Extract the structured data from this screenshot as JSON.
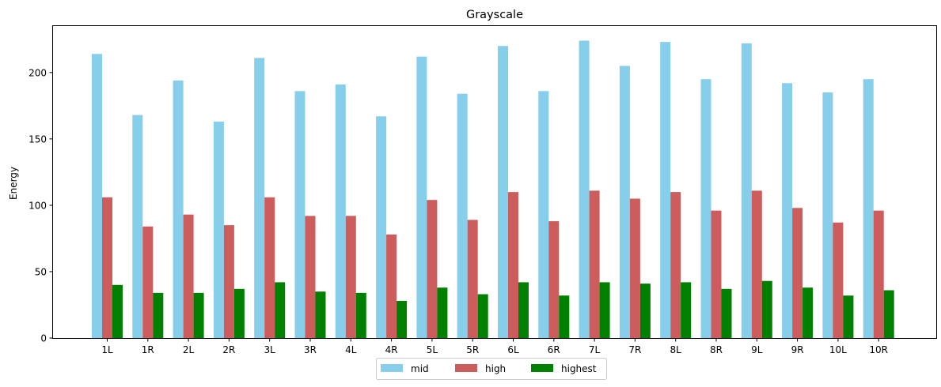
{
  "chart_data": {
    "type": "bar",
    "title": "Grayscale",
    "xlabel": "",
    "ylabel": "Energy",
    "ylim": [
      0,
      235
    ],
    "yticks": [
      0,
      50,
      100,
      150,
      200
    ],
    "grid": false,
    "legend_position": "bottom-center",
    "categories": [
      "1L",
      "1R",
      "2L",
      "2R",
      "3L",
      "3R",
      "4L",
      "4R",
      "5L",
      "5R",
      "6L",
      "6R",
      "7L",
      "7R",
      "8L",
      "8R",
      "9L",
      "9R",
      "10L",
      "10R"
    ],
    "series": [
      {
        "name": "mid",
        "color": "#87ceeb",
        "values": [
          214,
          168,
          194,
          163,
          211,
          186,
          191,
          167,
          212,
          184,
          220,
          186,
          224,
          205,
          223,
          195,
          222,
          192,
          185,
          195
        ]
      },
      {
        "name": "high",
        "color": "#cd5c5c",
        "values": [
          106,
          84,
          93,
          85,
          106,
          92,
          92,
          78,
          104,
          89,
          110,
          88,
          111,
          105,
          110,
          96,
          111,
          98,
          87,
          96
        ]
      },
      {
        "name": "highest",
        "color": "#008000",
        "values": [
          40,
          34,
          34,
          37,
          42,
          35,
          34,
          28,
          38,
          33,
          42,
          32,
          42,
          41,
          42,
          37,
          43,
          38,
          32,
          36
        ]
      }
    ]
  }
}
